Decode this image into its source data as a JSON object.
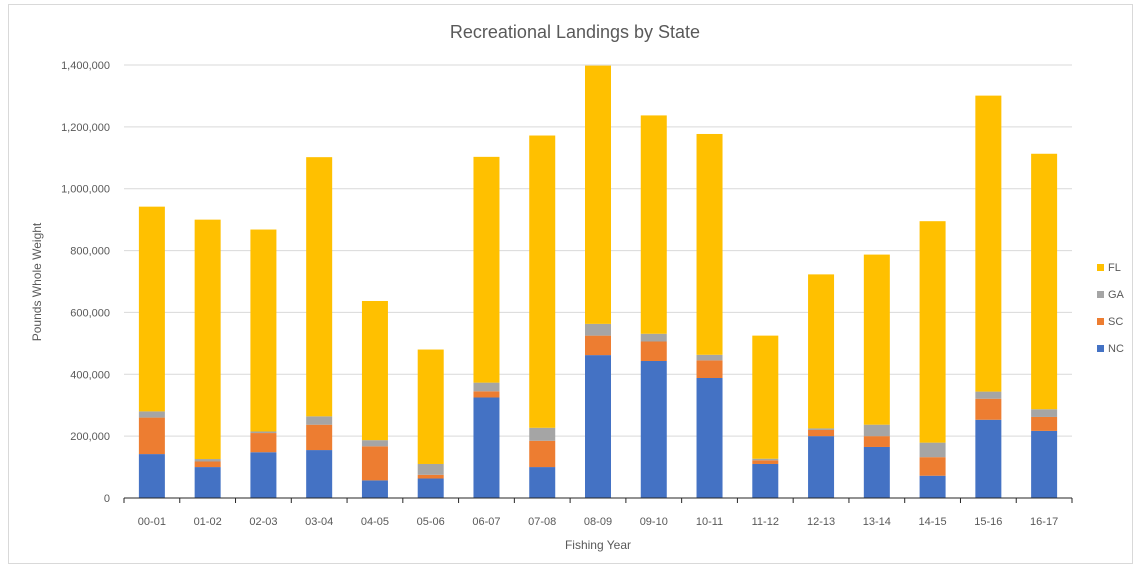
{
  "chart_data": {
    "type": "bar",
    "stacked": true,
    "title": "Recreational Landings by State",
    "xlabel": "Fishing Year",
    "ylabel": "Pounds Whole Weight",
    "ylim": [
      0,
      1400000
    ],
    "yticks": [
      "0",
      "200,000",
      "400,000",
      "600,000",
      "800,000",
      "1,000,000",
      "1,200,000",
      "1,400,000"
    ],
    "ytick_values": [
      0,
      200000,
      400000,
      600000,
      800000,
      1000000,
      1200000,
      1400000
    ],
    "grid": true,
    "legend_position": "right",
    "categories": [
      "00-01",
      "01-02",
      "02-03",
      "03-04",
      "04-05",
      "05-06",
      "06-07",
      "07-08",
      "08-09",
      "09-10",
      "10-11",
      "11-12",
      "12-13",
      "13-14",
      "14-15",
      "15-16",
      "16-17"
    ],
    "series": [
      {
        "name": "NC",
        "color": "#4472c4",
        "values": [
          142000,
          100000,
          148000,
          155000,
          57000,
          63000,
          325000,
          100000,
          462000,
          443000,
          388000,
          110000,
          200000,
          165000,
          72000,
          253000,
          217000
        ]
      },
      {
        "name": "SC",
        "color": "#ed7d31",
        "values": [
          118000,
          18000,
          62000,
          82000,
          110000,
          12000,
          20000,
          85000,
          63000,
          63000,
          57000,
          12000,
          20000,
          35000,
          60000,
          68000,
          45000
        ]
      },
      {
        "name": "GA",
        "color": "#a5a5a5",
        "values": [
          20000,
          8000,
          5000,
          27000,
          20000,
          35000,
          28000,
          42000,
          38000,
          25000,
          18000,
          5000,
          5000,
          37000,
          47000,
          23000,
          25000
        ]
      },
      {
        "name": "FL",
        "color": "#ffc000",
        "values": [
          662000,
          774000,
          653000,
          838000,
          450000,
          370000,
          730000,
          945000,
          835000,
          706000,
          714000,
          398000,
          498000,
          550000,
          716000,
          957000,
          826000
        ]
      }
    ]
  }
}
